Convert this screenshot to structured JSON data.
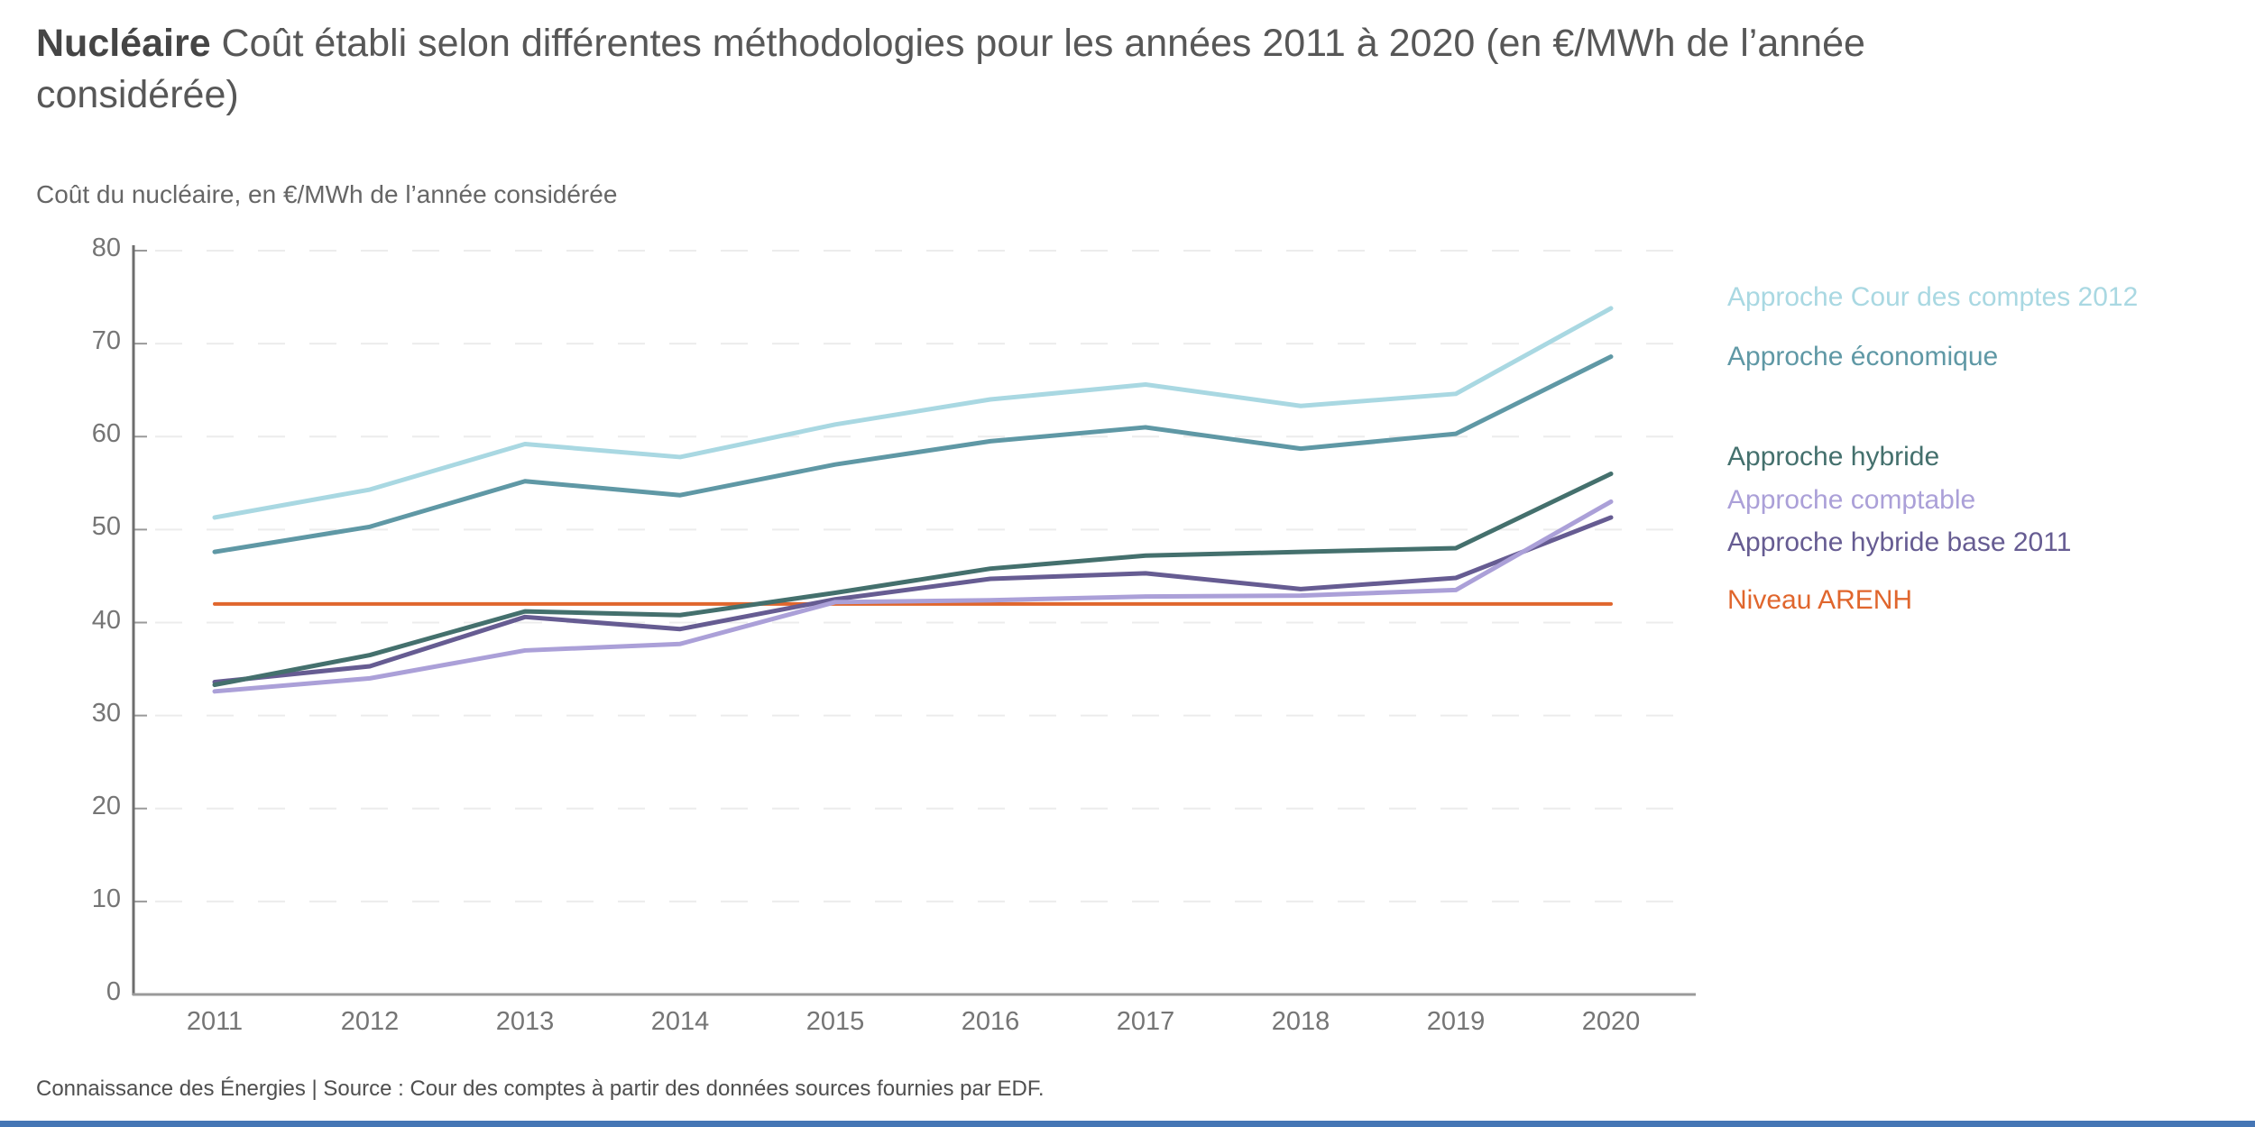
{
  "title": {
    "brand": "Nucléaire",
    "rest": " Coût établi selon différentes méthodologies pour les années 2011 à 2020 (en €/MWh de l’année considérée)"
  },
  "subtitle": "Coût du nucléaire, en €/MWh de l’année considérée",
  "footer": "Connaissance des Énergies | Source : Cour des comptes à partir des données sources fournies par EDF.",
  "colors": {
    "accent_bar": "#4576b5",
    "grid": "#ececec",
    "axis_x": "#9a9a9a",
    "axis_y": "#6e6e6e",
    "tick": "#9a9a9a",
    "tick_text": "#757575"
  },
  "chart_data": {
    "type": "line",
    "title": "Nucléaire Coût établi selon différentes méthodologies pour les années 2011 à 2020 (en €/MWh de l’année considérée)",
    "ylabel": "Coût du nucléaire, en €/MWh de l’année considérée",
    "x": [
      2011,
      2012,
      2013,
      2014,
      2015,
      2016,
      2017,
      2018,
      2019,
      2020
    ],
    "ylim": [
      0,
      80
    ],
    "ytick_step": 10,
    "grid": "horizontal-dashed",
    "legend_position": "right",
    "series": [
      {
        "id": "cour2012",
        "name": "Approche Cour des comptes 2012",
        "color": "#a9d8e2",
        "values": [
          51.3,
          54.3,
          59.2,
          57.8,
          61.3,
          64.0,
          65.6,
          63.3,
          64.6,
          73.8
        ]
      },
      {
        "id": "economique",
        "name": "Approche économique",
        "color": "#5f98a5",
        "values": [
          47.6,
          50.3,
          55.2,
          53.7,
          57.0,
          59.5,
          61.0,
          58.7,
          60.3,
          68.6
        ]
      },
      {
        "id": "hybride",
        "name": "Approche hybride",
        "color": "#44706d",
        "values": [
          33.3,
          36.5,
          41.2,
          40.8,
          43.2,
          45.8,
          47.2,
          47.6,
          48.0,
          56.0
        ]
      },
      {
        "id": "comptable",
        "name": "Approche comptable",
        "color": "#aba0d8",
        "values": [
          32.6,
          34.0,
          37.0,
          37.7,
          42.2,
          42.4,
          42.8,
          42.9,
          43.5,
          53.0
        ]
      },
      {
        "id": "hybride_base_2011",
        "name": "Approche hybride base 2011",
        "color": "#665c92",
        "values": [
          33.6,
          35.3,
          40.6,
          39.3,
          42.5,
          44.7,
          45.3,
          43.6,
          44.8,
          51.3
        ]
      },
      {
        "id": "arenh",
        "name": "Niveau ARENH",
        "color": "#e0662d",
        "values": [
          42,
          42,
          42,
          42,
          42,
          42,
          42,
          42,
          42,
          42
        ]
      }
    ]
  }
}
